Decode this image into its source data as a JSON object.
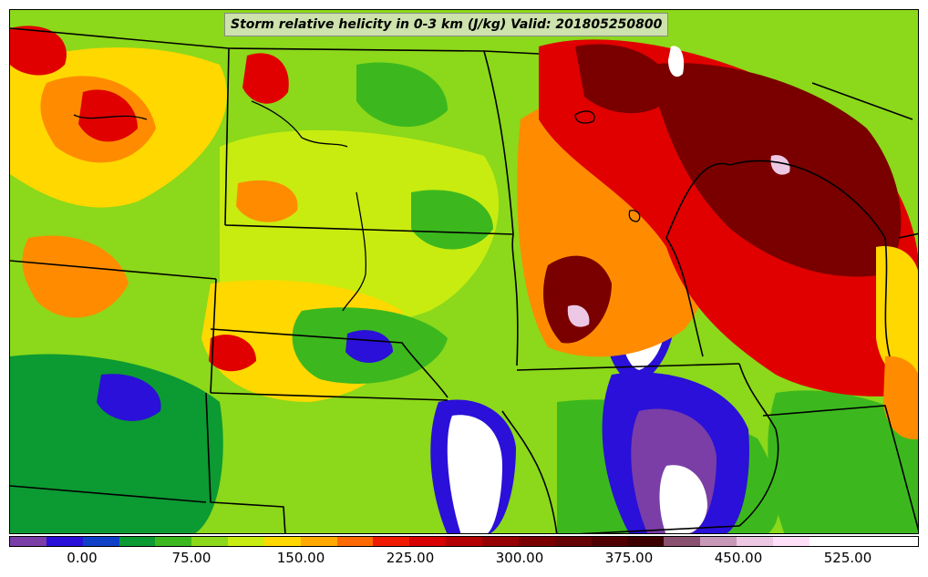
{
  "title": "Storm relative helicity in 0-3 km (J/kg) Valid: 201805250800",
  "colorbar": {
    "colors": [
      "#7a3ea6",
      "#2a10d8",
      "#1040c8",
      "#0c9a32",
      "#3cb81e",
      "#8cd81a",
      "#c8ec10",
      "#ffd800",
      "#ffa800",
      "#ff6a00",
      "#f01a00",
      "#d80000",
      "#b40000",
      "#960000",
      "#7a0000",
      "#640404",
      "#500000",
      "#3c0000",
      "#8a5070",
      "#c898b8",
      "#ecc8e4",
      "#ffe0f8",
      "#ffffff",
      "#ffffff",
      "#ffffff"
    ],
    "ticks": [
      "0.00",
      "75.00",
      "150.00",
      "225.00",
      "300.00",
      "375.00",
      "450.00",
      "525.00"
    ]
  },
  "regions": {
    "dark_red": "#7a0000",
    "red": "#e00000",
    "orange": "#ff8c00",
    "yellow": "#ffd800",
    "light_green": "#c8ec10",
    "green": "#3cb81e",
    "dark_green": "#0c9a32",
    "blue": "#2a10d8",
    "purple": "#7a3ea6",
    "white": "#ffffff",
    "pink": "#ecc8e4"
  }
}
